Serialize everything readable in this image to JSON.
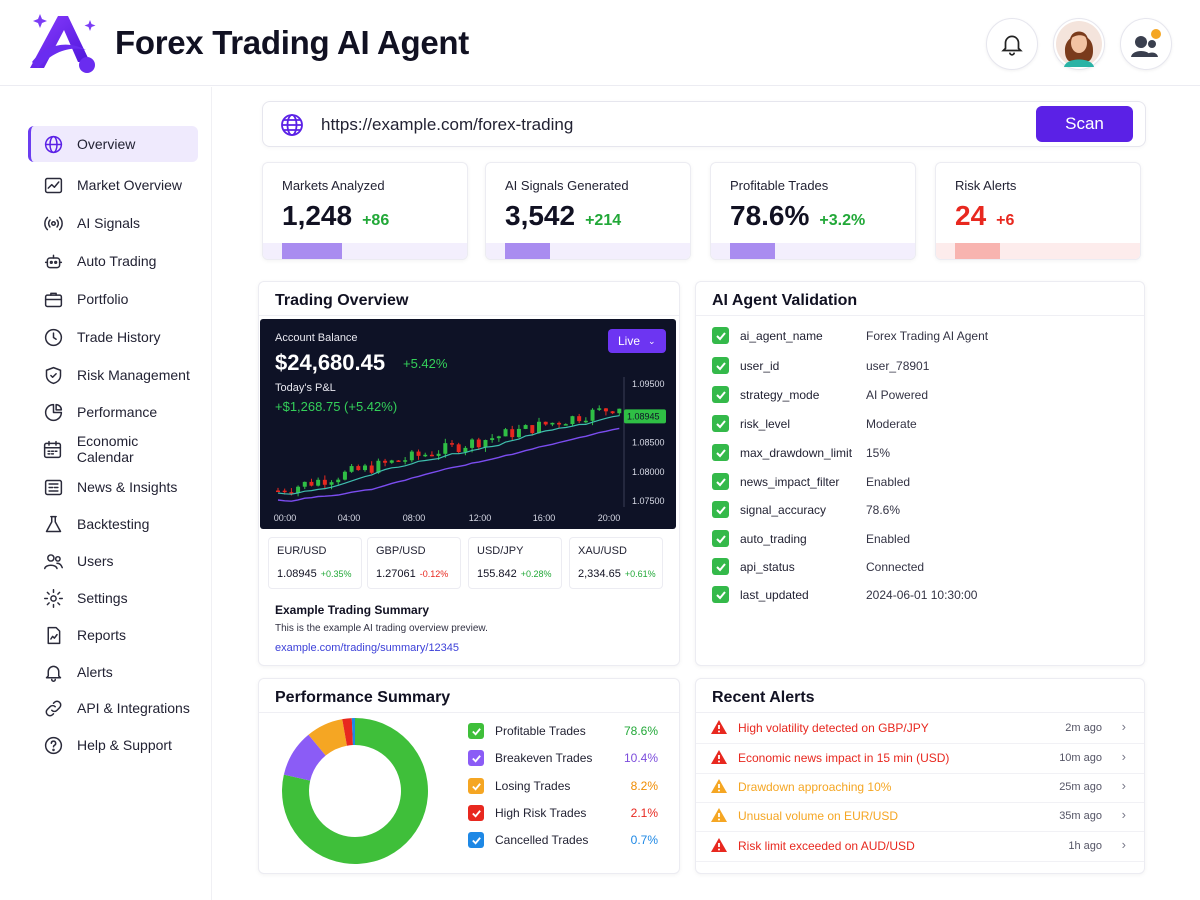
{
  "app": {
    "title": "Forex Trading AI Agent"
  },
  "sidebar": {
    "items": [
      {
        "label": "Overview",
        "icon": "globe-icon"
      },
      {
        "label": "Market Overview",
        "icon": "chart-line-icon"
      },
      {
        "label": "AI Signals",
        "icon": "broadcast-icon"
      },
      {
        "label": "Auto Trading",
        "icon": "robot-icon"
      },
      {
        "label": "Portfolio",
        "icon": "briefcase-icon"
      },
      {
        "label": "Trade History",
        "icon": "clock-icon"
      },
      {
        "label": "Risk Management",
        "icon": "shield-icon"
      },
      {
        "label": "Performance",
        "icon": "pie-chart-icon"
      },
      {
        "label": "Economic Calendar",
        "icon": "calendar-icon"
      },
      {
        "label": "News & Insights",
        "icon": "newspaper-icon"
      },
      {
        "label": "Backtesting",
        "icon": "flask-icon"
      },
      {
        "label": "Users",
        "icon": "users-icon"
      },
      {
        "label": "Settings",
        "icon": "gear-icon"
      },
      {
        "label": "Reports",
        "icon": "report-icon"
      },
      {
        "label": "Alerts",
        "icon": "bell-icon"
      },
      {
        "label": "API & Integrations",
        "icon": "link-icon"
      },
      {
        "label": "Help & Support",
        "icon": "help-icon"
      }
    ]
  },
  "search": {
    "url": "https://example.com/forex-trading",
    "scan_label": "Scan"
  },
  "stats": [
    {
      "label": "Markets Analyzed",
      "value": "1,248",
      "delta": "+86",
      "progress": 0.4
    },
    {
      "label": "AI Signals Generated",
      "value": "3,542",
      "delta": "+214",
      "progress": 0.3
    },
    {
      "label": "Profitable Trades",
      "value": "78.6%",
      "delta": "+3.2%",
      "progress": 0.3
    },
    {
      "label": "Risk Alerts",
      "value": "24",
      "delta": "+6",
      "progress": 0.3
    }
  ],
  "trading_overview": {
    "title": "Trading Overview",
    "balance_label": "Account Balance",
    "balance": "$24,680.45",
    "balance_change": "+5.42%",
    "pnl_label": "Today's P&L",
    "pnl": "+$1,268.75 (+5.42%)",
    "live_label": "Live",
    "current_price": "1.08945",
    "y_ticks": [
      "1.09500",
      "1.09000",
      "1.08500",
      "1.08000",
      "1.07500"
    ],
    "x_ticks": [
      "00:00",
      "04:00",
      "08:00",
      "12:00",
      "16:00",
      "20:00"
    ],
    "pairs": [
      {
        "name": "EUR/USD",
        "price": "1.08945",
        "change": "+0.35%",
        "up": true
      },
      {
        "name": "GBP/USD",
        "price": "1.27061",
        "change": "-0.12%",
        "up": false
      },
      {
        "name": "USD/JPY",
        "price": "155.842",
        "change": "+0.28%",
        "up": true
      },
      {
        "name": "XAU/USD",
        "price": "2,334.65",
        "change": "+0.61%",
        "up": true
      }
    ],
    "summary_title": "Example Trading Summary",
    "summary_text": "This is the example AI trading overview preview.",
    "summary_link": "example.com/trading/summary/12345"
  },
  "validation": {
    "title": "AI Agent Validation",
    "rows": [
      {
        "key": "ai_agent_name",
        "value": "Forex Trading AI Agent"
      },
      {
        "key": "user_id",
        "value": "user_78901"
      },
      {
        "key": "strategy_mode",
        "value": "AI Powered"
      },
      {
        "key": "risk_level",
        "value": "Moderate"
      },
      {
        "key": "max_drawdown_limit",
        "value": "15%"
      },
      {
        "key": "news_impact_filter",
        "value": "Enabled"
      },
      {
        "key": "signal_accuracy",
        "value": "78.6%"
      },
      {
        "key": "auto_trading",
        "value": "Enabled"
      },
      {
        "key": "api_status",
        "value": "Connected"
      },
      {
        "key": "last_updated",
        "value": "2024-06-01 10:30:00"
      }
    ]
  },
  "performance": {
    "title": "Performance Summary",
    "items": [
      {
        "label": "Profitable Trades",
        "pct": "78.6%",
        "value": 78.6,
        "color": "#3fbf3a",
        "text_color": "#22a838"
      },
      {
        "label": "Breakeven Trades",
        "pct": "10.4%",
        "value": 10.4,
        "color": "#8b5cf6",
        "text_color": "#7c4ddc"
      },
      {
        "label": "Losing Trades",
        "pct": "8.2%",
        "value": 8.2,
        "color": "#f5a623",
        "text_color": "#f08c00"
      },
      {
        "label": "High Risk Trades",
        "pct": "2.1%",
        "value": 2.1,
        "color": "#e8281f",
        "text_color": "#e8281f"
      },
      {
        "label": "Cancelled Trades",
        "pct": "0.7%",
        "value": 0.7,
        "color": "#1e88e5",
        "text_color": "#1e88e5"
      }
    ]
  },
  "alerts": {
    "title": "Recent Alerts",
    "items": [
      {
        "text": "High volatility detected on GBP/JPY",
        "time": "2m ago",
        "level": "red"
      },
      {
        "text": "Economic news impact in 15 min (USD)",
        "time": "10m ago",
        "level": "red"
      },
      {
        "text": "Drawdown approaching 10%",
        "time": "25m ago",
        "level": "orange"
      },
      {
        "text": "Unusual volume on EUR/USD",
        "time": "35m ago",
        "level": "orange"
      },
      {
        "text": "Risk limit exceeded on AUD/USD",
        "time": "1h ago",
        "level": "red"
      }
    ]
  },
  "colors": {
    "accent": "#5b21e6",
    "up": "#22a838",
    "down": "#e8281f",
    "warn": "#f5a623"
  }
}
